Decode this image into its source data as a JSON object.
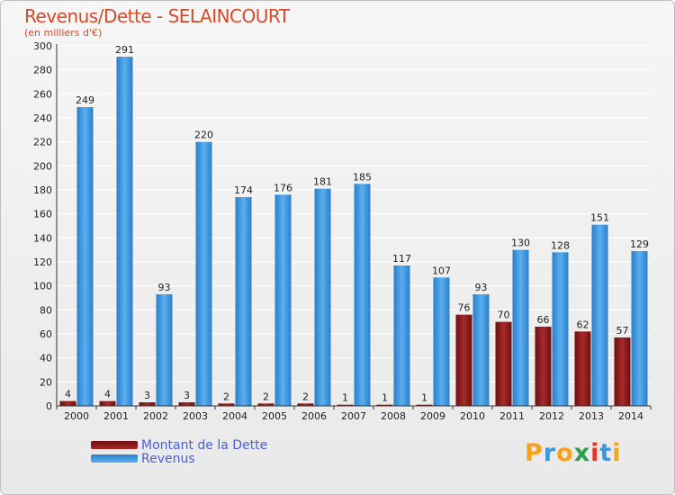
{
  "chart_data": {
    "type": "bar",
    "title": "Revenus/Dette - SELAINCOURT",
    "subtitle": "(en milliers d'€)",
    "categories": [
      "2000",
      "2001",
      "2002",
      "2003",
      "2004",
      "2005",
      "2006",
      "2007",
      "2008",
      "2009",
      "2010",
      "2011",
      "2012",
      "2013",
      "2014"
    ],
    "series": [
      {
        "name": "Montant de la Dette",
        "color": "#8b1a1a",
        "values": [
          4,
          4,
          3,
          3,
          2,
          2,
          2,
          1,
          1,
          1,
          76,
          70,
          66,
          62,
          57
        ]
      },
      {
        "name": "Revenus",
        "color": "#3c97e0",
        "values": [
          249,
          291,
          93,
          220,
          174,
          176,
          181,
          185,
          117,
          107,
          93,
          130,
          128,
          151,
          129
        ]
      }
    ],
    "yticks": [
      0,
      20,
      40,
      60,
      80,
      100,
      120,
      140,
      160,
      180,
      200,
      220,
      240,
      260,
      280,
      300
    ],
    "ylim": [
      0,
      300
    ],
    "grid": true,
    "legend_position": "bottom-left"
  },
  "logo": {
    "text": "Proxiti",
    "letters": [
      "P",
      "r",
      "o",
      "x",
      "i",
      "t",
      "i"
    ],
    "colors": [
      "#f7a21b",
      "#3c97e0",
      "#f7a21b",
      "#2aa24b",
      "#e8322b",
      "#3c97e0",
      "#f7a21b"
    ]
  }
}
